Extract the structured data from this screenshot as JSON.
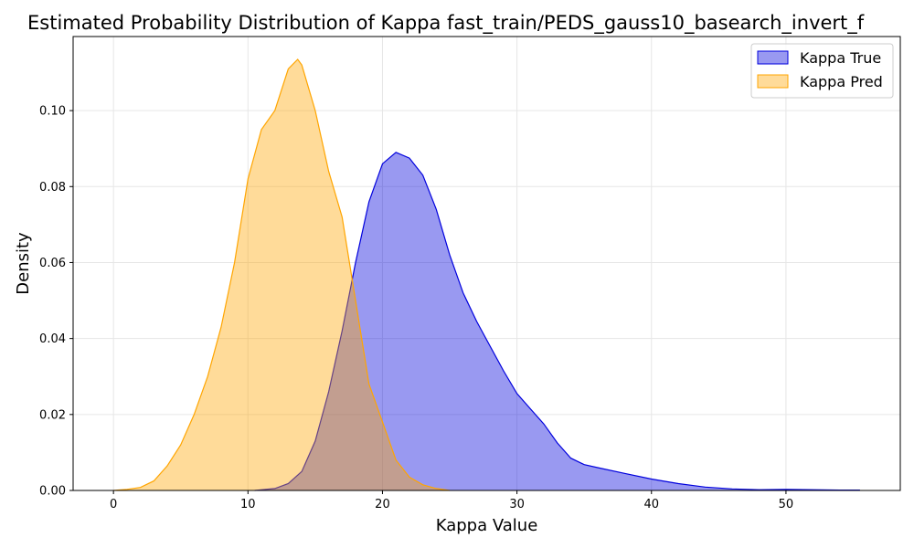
{
  "chart_data": {
    "type": "area",
    "title": "Estimated Probability Distribution of Kappa fast_train/PEDS_gauss10_basearch_invert_f",
    "xlabel": "Kappa Value",
    "ylabel": "Density",
    "xlim": [
      -3,
      58.5
    ],
    "ylim": [
      0,
      0.1195
    ],
    "xticks": [
      0,
      10,
      20,
      30,
      40,
      50
    ],
    "yticks": [
      0.0,
      0.02,
      0.04,
      0.06,
      0.08,
      0.1
    ],
    "xtick_labels": [
      "0",
      "10",
      "20",
      "30",
      "40",
      "50"
    ],
    "ytick_labels": [
      "0.00",
      "0.02",
      "0.04",
      "0.06",
      "0.08",
      "0.10"
    ],
    "grid": true,
    "legend_position": "top-right",
    "series": [
      {
        "name": "Kappa True",
        "color": "#0000dd",
        "fill": "#9999ff",
        "x": [
          10.5,
          12,
          13,
          14,
          15,
          16,
          17,
          18,
          19,
          20,
          21,
          22,
          23,
          24,
          25,
          26,
          27,
          28,
          29,
          30,
          31,
          32,
          33,
          34,
          35,
          36,
          38,
          40,
          42,
          44,
          46,
          48,
          50,
          52,
          54,
          55.5
        ],
        "y": [
          0,
          0.0005,
          0.0018,
          0.005,
          0.013,
          0.026,
          0.042,
          0.06,
          0.076,
          0.086,
          0.089,
          0.0875,
          0.083,
          0.074,
          0.062,
          0.052,
          0.0445,
          0.038,
          0.0315,
          0.0255,
          0.0215,
          0.0175,
          0.0125,
          0.0085,
          0.0068,
          0.006,
          0.0045,
          0.003,
          0.0018,
          0.0009,
          0.0004,
          0.0002,
          0.0003,
          0.0002,
          0.0001,
          0.0001
        ]
      },
      {
        "name": "Kappa Pred",
        "color": "#ffa500",
        "fill": "#ffd899",
        "x": [
          0,
          1,
          2,
          3,
          4,
          5,
          6,
          7,
          8,
          9,
          10,
          11,
          12,
          13,
          13.7,
          14,
          15,
          16,
          17,
          18,
          19,
          20,
          21,
          22,
          23,
          24,
          25
        ],
        "y": [
          0,
          0.0003,
          0.0008,
          0.0025,
          0.0065,
          0.012,
          0.02,
          0.03,
          0.043,
          0.06,
          0.082,
          0.095,
          0.1,
          0.111,
          0.1135,
          0.112,
          0.1,
          0.084,
          0.072,
          0.05,
          0.028,
          0.018,
          0.008,
          0.0035,
          0.0015,
          0.0005,
          0
        ]
      }
    ]
  }
}
